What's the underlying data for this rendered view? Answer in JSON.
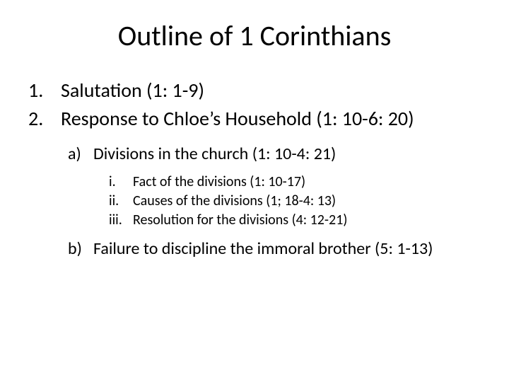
{
  "title": "Outline of 1 Corinthians",
  "colors": {
    "background": "#ffffff",
    "text": "#000000"
  },
  "typography": {
    "title_fontsize": 40,
    "level1_fontsize": 28,
    "level2_fontsize": 24,
    "level3_fontsize": 20,
    "font_family": "Calibri"
  },
  "outline": {
    "level1": [
      {
        "num": "1.",
        "text": "Salutation (1: 1-9)"
      },
      {
        "num": "2.",
        "text": "Response to Chloe’s Household (1: 10-6: 20)"
      }
    ],
    "level2a": {
      "num": "a)",
      "text": "Divisions in the church (1: 10-4: 21)"
    },
    "level3": [
      {
        "num": "i.",
        "text": "Fact of the divisions (1: 10-17)"
      },
      {
        "num": "ii.",
        "text": "Causes of the divisions (1; 18-4: 13)"
      },
      {
        "num": "iii.",
        "text": "Resolution for the divisions (4: 12-21)"
      }
    ],
    "level2b": {
      "num": "b)",
      "text": "Failure to discipline the immoral brother (5: 1-13)"
    }
  }
}
